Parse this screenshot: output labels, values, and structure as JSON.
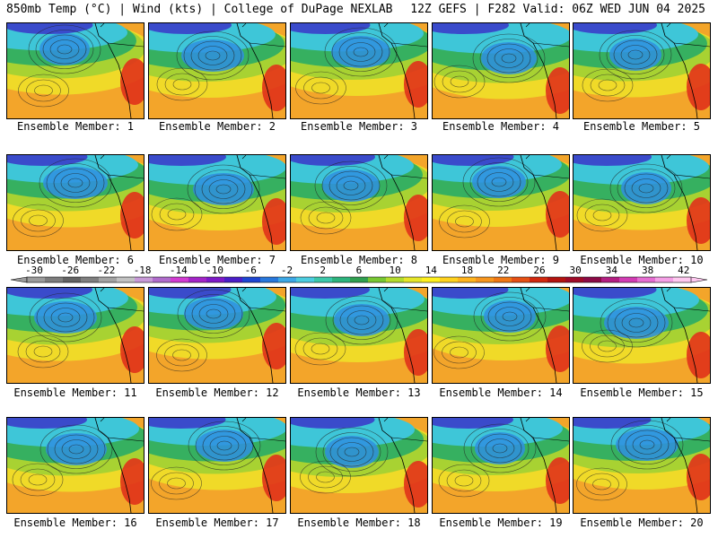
{
  "header": {
    "left": "850mb Temp (°C) | Wind (kts) | College of DuPage NEXLAB",
    "right": "12Z GEFS | F282 Valid: 06Z WED JUN 04 2025"
  },
  "members": [
    "Ensemble Member: 1",
    "Ensemble Member: 2",
    "Ensemble Member: 3",
    "Ensemble Member: 4",
    "Ensemble Member: 5",
    "Ensemble Member: 6",
    "Ensemble Member: 7",
    "Ensemble Member: 8",
    "Ensemble Member: 9",
    "Ensemble Member: 10",
    "Ensemble Member: 11",
    "Ensemble Member: 12",
    "Ensemble Member: 13",
    "Ensemble Member: 14",
    "Ensemble Member: 15",
    "Ensemble Member: 16",
    "Ensemble Member: 17",
    "Ensemble Member: 18",
    "Ensemble Member: 19",
    "Ensemble Member: 20"
  ],
  "colorbar": {
    "tick_labels": [
      "-30",
      "-26",
      "-22",
      "-18",
      "-14",
      "-10",
      "-6",
      "-2",
      "2",
      "6",
      "10",
      "14",
      "18",
      "22",
      "26",
      "30",
      "34",
      "38",
      "42"
    ],
    "colors": [
      "#9b9b9b",
      "#7d7d7d",
      "#636363",
      "#7f7f7f",
      "#a3a3a3",
      "#c2c2c2",
      "#c89ad8",
      "#b06ccc",
      "#d23bd2",
      "#a324c8",
      "#7e19c8",
      "#4a1ec8",
      "#1e46d2",
      "#2878dc",
      "#3ca8e6",
      "#4ccde0",
      "#3cc8aa",
      "#2db47d",
      "#30a050",
      "#78c832",
      "#b4dc2d",
      "#e6e628",
      "#fff01e",
      "#ffd21e",
      "#ffb41e",
      "#f7961e",
      "#f07814",
      "#e65014",
      "#d2280f",
      "#b4140f",
      "#a00a28",
      "#8c0a46",
      "#b41e82",
      "#d23cb4",
      "#e66ed2",
      "#f5a0e6",
      "#ffc8f0"
    ]
  },
  "map_palette": {
    "cold_core": "#3a2cc8",
    "blue": "#2f8fe0",
    "cyan": "#3ec6d8",
    "green": "#36b060",
    "yellowgreen": "#a8d232",
    "yellow": "#f0e028",
    "orange": "#f3a52a",
    "hot": "#e0321a",
    "land_edge": "#000000"
  }
}
